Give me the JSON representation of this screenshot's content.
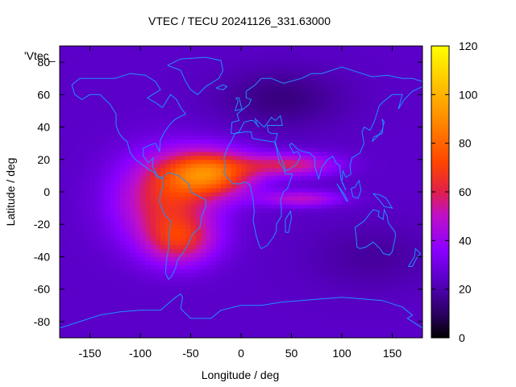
{
  "chart_data": {
    "type": "heatmap",
    "title": "VTEC / TECU 20241126_331.63000",
    "xlabel": "Longitude / deg",
    "ylabel": "Latitude / deg",
    "xlim": [
      -180,
      180
    ],
    "ylim": [
      -90,
      90
    ],
    "x_ticks": [
      "-150",
      "-100",
      "-50",
      "0",
      "50",
      "100",
      "150"
    ],
    "x_tick_values": [
      -150,
      -100,
      -50,
      0,
      50,
      100,
      150
    ],
    "y_ticks": [
      "-80",
      "-60",
      "-40",
      "-20",
      "0",
      "20",
      "40",
      "60",
      "80"
    ],
    "y_tick_values": [
      -80,
      -60,
      -40,
      -20,
      0,
      20,
      40,
      60,
      80
    ],
    "colorbar": {
      "range": [
        0,
        120
      ],
      "ticks": [
        "0",
        "20",
        "40",
        "60",
        "80",
        "100",
        "120"
      ],
      "tick_values": [
        0,
        20,
        40,
        60,
        80,
        100,
        120
      ],
      "colormap": [
        "#000000",
        "#3a0070",
        "#7a00ff",
        "#c01cc0",
        "#ff3300",
        "#ff9900",
        "#ffff00"
      ]
    },
    "legend_label": "'Vtec_",
    "overlay": "coastlines",
    "coastline_color": "#1e90ff",
    "grid": false,
    "field_description_values": {
      "background_vtec": 24,
      "peak_vtec": 112,
      "peak_location": {
        "lon": -30,
        "lat": 15
      }
    }
  }
}
